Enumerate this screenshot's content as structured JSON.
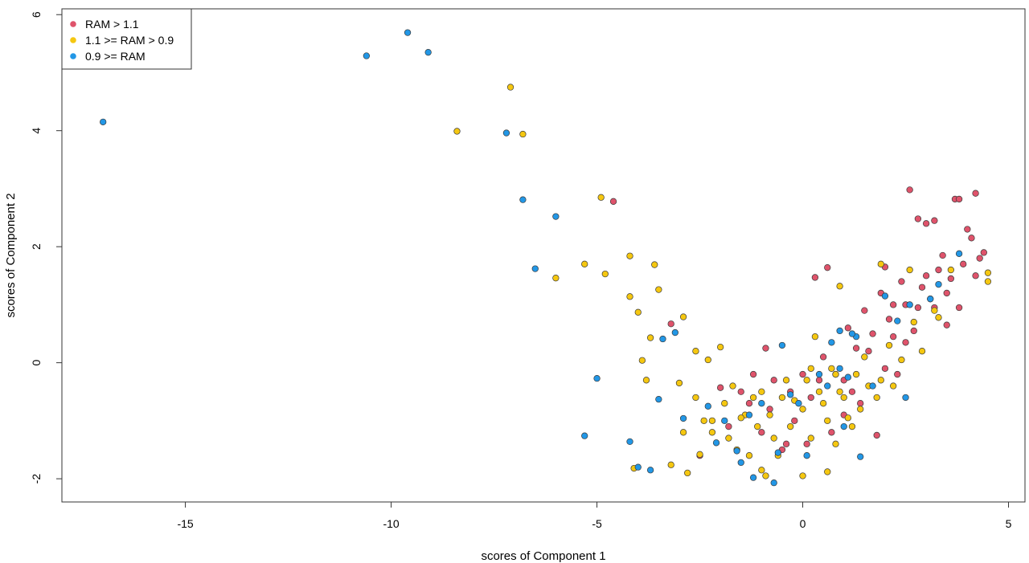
{
  "chart_data": {
    "type": "scatter",
    "title": "",
    "xlabel": "scores of Component 1",
    "ylabel": "scores of Component 2",
    "xlim": [
      -18.0,
      5.4
    ],
    "ylim": [
      -2.4,
      6.1
    ],
    "xticks": [
      -15,
      -10,
      -5,
      0,
      5
    ],
    "yticks": [
      -2,
      0,
      2,
      4,
      6
    ],
    "grid": false,
    "legend_position": "top-left",
    "series": [
      {
        "name": "RAM > 1.1",
        "color": "#df536b",
        "points": [
          [
            -4.6,
            2.78
          ],
          [
            -3.2,
            0.67
          ],
          [
            -2.0,
            -0.43
          ],
          [
            -1.5,
            -0.5
          ],
          [
            -1.2,
            -0.2
          ],
          [
            -1.0,
            -1.2
          ],
          [
            -0.9,
            0.25
          ],
          [
            -0.7,
            -0.3
          ],
          [
            -0.5,
            -1.5
          ],
          [
            -0.3,
            -0.5
          ],
          [
            0.0,
            -0.2
          ],
          [
            0.1,
            -1.4
          ],
          [
            0.2,
            -0.6
          ],
          [
            0.3,
            1.47
          ],
          [
            0.6,
            1.64
          ],
          [
            0.8,
            -0.2
          ],
          [
            1.0,
            -0.9
          ],
          [
            1.1,
            0.6
          ],
          [
            1.3,
            0.25
          ],
          [
            1.5,
            0.9
          ],
          [
            1.6,
            0.2
          ],
          [
            1.8,
            -1.25
          ],
          [
            1.9,
            1.2
          ],
          [
            2.0,
            1.65
          ],
          [
            2.1,
            0.75
          ],
          [
            2.2,
            0.45
          ],
          [
            2.3,
            -0.2
          ],
          [
            2.4,
            1.4
          ],
          [
            2.5,
            1.0
          ],
          [
            2.6,
            2.98
          ],
          [
            2.7,
            0.55
          ],
          [
            2.8,
            2.48
          ],
          [
            2.9,
            1.3
          ],
          [
            3.0,
            2.4
          ],
          [
            3.1,
            1.1
          ],
          [
            3.2,
            2.45
          ],
          [
            3.2,
            0.95
          ],
          [
            3.3,
            1.6
          ],
          [
            3.4,
            1.85
          ],
          [
            3.5,
            0.65
          ],
          [
            3.6,
            1.45
          ],
          [
            3.7,
            2.82
          ],
          [
            3.8,
            2.82
          ],
          [
            3.8,
            0.95
          ],
          [
            3.9,
            1.7
          ],
          [
            4.0,
            2.3
          ],
          [
            4.1,
            2.15
          ],
          [
            4.2,
            2.92
          ],
          [
            4.2,
            1.5
          ],
          [
            4.4,
            1.9
          ],
          [
            -0.8,
            -0.8
          ],
          [
            -0.2,
            -1.0
          ],
          [
            0.4,
            -0.3
          ],
          [
            0.7,
            -1.2
          ],
          [
            1.2,
            -0.5
          ],
          [
            1.4,
            -0.7
          ],
          [
            2.0,
            -0.1
          ],
          [
            2.2,
            1.0
          ],
          [
            2.5,
            0.35
          ],
          [
            3.0,
            1.5
          ],
          [
            -1.8,
            -1.1
          ],
          [
            -2.5,
            -1.6
          ],
          [
            -0.4,
            -1.4
          ],
          [
            0.5,
            0.1
          ],
          [
            1.0,
            -0.3
          ],
          [
            1.7,
            0.5
          ],
          [
            2.8,
            0.95
          ],
          [
            3.5,
            1.2
          ],
          [
            4.3,
            1.8
          ],
          [
            -1.3,
            -0.7
          ]
        ]
      },
      {
        "name": "1.1 >= RAM > 0.9",
        "color": "#f5c710",
        "points": [
          [
            -7.1,
            4.75
          ],
          [
            -8.4,
            3.99
          ],
          [
            -6.8,
            3.94
          ],
          [
            -4.9,
            2.85
          ],
          [
            -5.3,
            1.7
          ],
          [
            -6.0,
            1.46
          ],
          [
            -4.8,
            1.53
          ],
          [
            -4.2,
            1.84
          ],
          [
            -3.6,
            1.69
          ],
          [
            -3.5,
            1.26
          ],
          [
            -4.2,
            1.14
          ],
          [
            -4.0,
            0.87
          ],
          [
            -2.9,
            0.79
          ],
          [
            -3.7,
            0.43
          ],
          [
            -3.9,
            0.04
          ],
          [
            -3.8,
            -0.3
          ],
          [
            -3.0,
            -0.35
          ],
          [
            -2.6,
            0.2
          ],
          [
            -2.3,
            0.05
          ],
          [
            -2.0,
            0.27
          ],
          [
            -4.1,
            -1.82
          ],
          [
            -3.2,
            -1.76
          ],
          [
            -2.8,
            -1.9
          ],
          [
            -2.5,
            -1.58
          ],
          [
            -2.2,
            -1.2
          ],
          [
            -1.9,
            -0.7
          ],
          [
            -1.6,
            -1.5
          ],
          [
            -1.4,
            -0.9
          ],
          [
            -1.1,
            -1.1
          ],
          [
            -0.9,
            -1.95
          ],
          [
            -0.7,
            -1.3
          ],
          [
            -0.5,
            -0.6
          ],
          [
            -0.3,
            -1.1
          ],
          [
            0.0,
            -0.8
          ],
          [
            0.2,
            -1.3
          ],
          [
            0.4,
            -0.5
          ],
          [
            0.6,
            -1.0
          ],
          [
            0.8,
            -0.2
          ],
          [
            1.0,
            -0.6
          ],
          [
            1.2,
            -1.1
          ],
          [
            1.4,
            -0.8
          ],
          [
            1.6,
            -0.4
          ],
          [
            1.9,
            -0.3
          ],
          [
            2.1,
            0.3
          ],
          [
            2.4,
            0.05
          ],
          [
            2.7,
            0.7
          ],
          [
            2.9,
            0.2
          ],
          [
            3.2,
            0.9
          ],
          [
            3.6,
            1.6
          ],
          [
            4.5,
            1.55
          ],
          [
            4.5,
            1.4
          ],
          [
            -1.7,
            -0.4
          ],
          [
            -1.2,
            -0.6
          ],
          [
            -0.8,
            -0.9
          ],
          [
            0.1,
            -0.3
          ],
          [
            0.5,
            -0.7
          ],
          [
            0.9,
            -0.5
          ],
          [
            1.3,
            -0.2
          ],
          [
            -2.2,
            -1.0
          ],
          [
            -1.8,
            -1.3
          ],
          [
            -1.0,
            -0.5
          ],
          [
            -0.6,
            -1.6
          ],
          [
            0.3,
            0.45
          ],
          [
            0.9,
            1.32
          ],
          [
            1.9,
            1.7
          ],
          [
            2.6,
            1.6
          ],
          [
            -2.6,
            -0.6
          ],
          [
            -1.5,
            -0.95
          ],
          [
            -0.2,
            -0.65
          ],
          [
            0.7,
            -0.1
          ],
          [
            1.1,
            -0.95
          ],
          [
            0.6,
            -1.88
          ],
          [
            0.0,
            -1.95
          ],
          [
            -2.9,
            -1.2
          ],
          [
            -1.3,
            -1.6
          ],
          [
            -0.4,
            -0.3
          ],
          [
            1.5,
            0.1
          ],
          [
            2.2,
            -0.4
          ],
          [
            3.3,
            0.78
          ],
          [
            -2.4,
            -1.0
          ],
          [
            -1.0,
            -1.85
          ],
          [
            0.2,
            -0.1
          ],
          [
            0.8,
            -1.4
          ],
          [
            1.8,
            -0.6
          ]
        ]
      },
      {
        "name": "0.9 >= RAM",
        "color": "#2297e6",
        "points": [
          [
            -17.0,
            4.15
          ],
          [
            -10.6,
            5.29
          ],
          [
            -9.6,
            5.69
          ],
          [
            -9.1,
            5.35
          ],
          [
            -7.2,
            3.96
          ],
          [
            -6.8,
            2.81
          ],
          [
            -6.0,
            2.52
          ],
          [
            -6.5,
            1.62
          ],
          [
            -5.0,
            -0.27
          ],
          [
            -5.3,
            -1.26
          ],
          [
            -4.2,
            -1.36
          ],
          [
            -4.0,
            -1.8
          ],
          [
            -3.7,
            -1.85
          ],
          [
            -3.5,
            -0.63
          ],
          [
            -3.4,
            0.41
          ],
          [
            -3.1,
            0.52
          ],
          [
            -2.9,
            -0.96
          ],
          [
            -2.3,
            -0.75
          ],
          [
            -2.1,
            -1.38
          ],
          [
            -1.5,
            -1.72
          ],
          [
            -1.3,
            -0.9
          ],
          [
            -1.2,
            -1.98
          ],
          [
            -1.0,
            -0.7
          ],
          [
            -0.7,
            -2.07
          ],
          [
            -0.5,
            0.3
          ],
          [
            -0.3,
            -0.55
          ],
          [
            -0.1,
            -0.7
          ],
          [
            0.1,
            -1.6
          ],
          [
            0.4,
            -0.2
          ],
          [
            0.7,
            0.35
          ],
          [
            0.9,
            0.55
          ],
          [
            1.1,
            -0.25
          ],
          [
            1.3,
            0.45
          ],
          [
            1.4,
            -1.62
          ],
          [
            1.7,
            -0.4
          ],
          [
            2.0,
            1.15
          ],
          [
            2.3,
            0.72
          ],
          [
            2.5,
            -0.6
          ],
          [
            3.1,
            1.1
          ],
          [
            3.3,
            1.35
          ],
          [
            3.8,
            1.88
          ],
          [
            -1.6,
            -1.52
          ],
          [
            0.6,
            -0.4
          ],
          [
            1.0,
            -1.1
          ],
          [
            -1.9,
            -1.0
          ],
          [
            -0.6,
            -1.55
          ],
          [
            1.2,
            0.5
          ],
          [
            2.6,
            1.0
          ],
          [
            0.9,
            -0.1
          ]
        ]
      }
    ]
  }
}
